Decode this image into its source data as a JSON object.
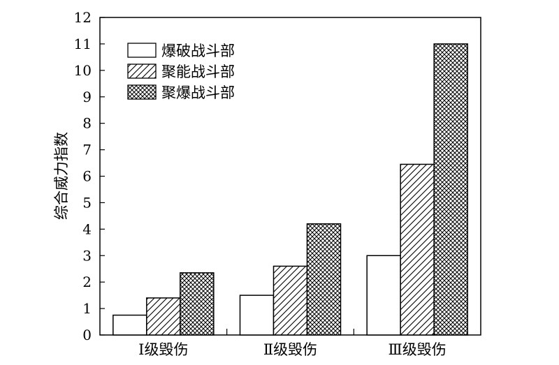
{
  "chart_data": {
    "type": "bar",
    "title": "",
    "xlabel": "",
    "ylabel": "综合威力指数",
    "ylim": [
      0,
      12
    ],
    "yticks": [
      0,
      1,
      2,
      3,
      4,
      5,
      6,
      7,
      8,
      9,
      10,
      11,
      12
    ],
    "categories": [
      "Ⅰ级毁伤",
      "Ⅱ级毁伤",
      "Ⅲ级毁伤"
    ],
    "series": [
      {
        "name": "爆破战斗部",
        "pattern": "blank",
        "values": [
          0.75,
          1.5,
          3.0
        ]
      },
      {
        "name": "聚能战斗部",
        "pattern": "diagonal-hatch",
        "values": [
          1.4,
          2.6,
          6.45
        ]
      },
      {
        "name": "聚爆战斗部",
        "pattern": "crosshatch",
        "values": [
          2.35,
          4.2,
          11.0
        ]
      }
    ],
    "legend_position": "top-left",
    "grid": false,
    "colors": {
      "stroke": "#000000",
      "fill": "#ffffff"
    }
  }
}
